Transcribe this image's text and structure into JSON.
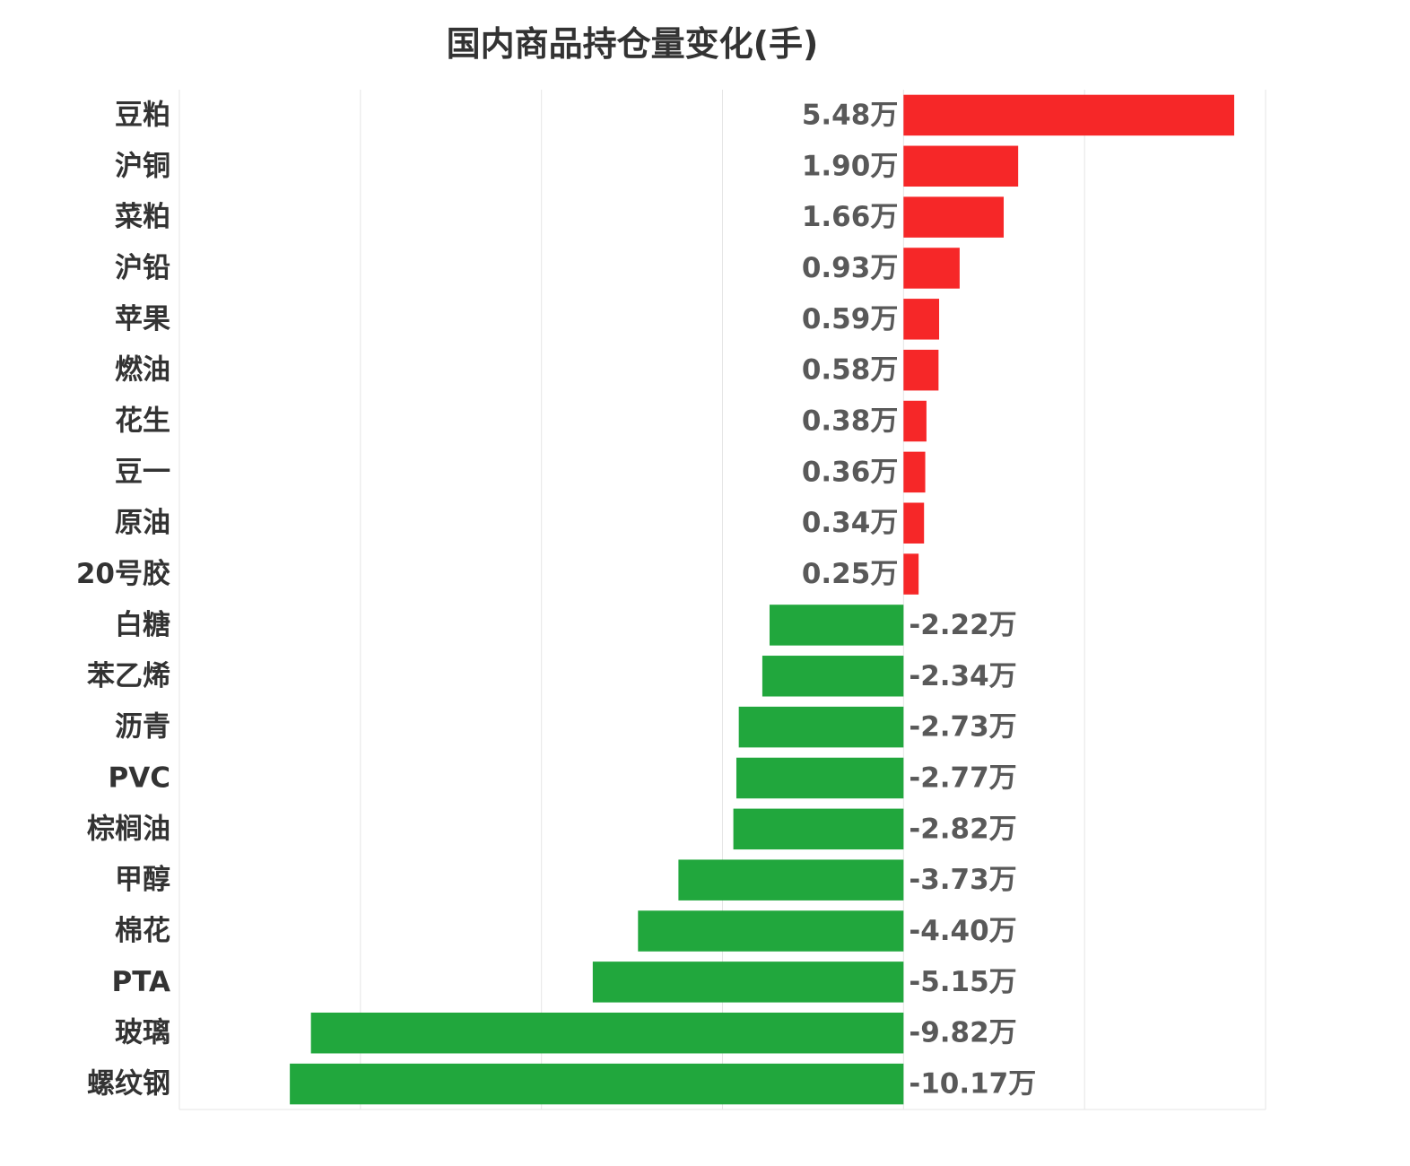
{
  "chart_data": {
    "type": "bar",
    "orientation": "horizontal",
    "title": "国内商品持仓量变化(手)",
    "categories": [
      "豆粕",
      "沪铜",
      "菜粕",
      "沪铅",
      "苹果",
      "燃油",
      "花生",
      "豆一",
      "原油",
      "20号胶",
      "白糖",
      "苯乙烯",
      "沥青",
      "PVC",
      "棕榈油",
      "甲醇",
      "棉花",
      "PTA",
      "玻璃",
      "螺纹钢"
    ],
    "values": [
      5.48,
      1.9,
      1.66,
      0.93,
      0.59,
      0.58,
      0.38,
      0.36,
      0.34,
      0.25,
      -2.22,
      -2.34,
      -2.73,
      -2.77,
      -2.82,
      -3.73,
      -4.4,
      -5.15,
      -9.82,
      -10.17
    ],
    "labels": [
      "5.48万",
      "1.90万",
      "1.66万",
      "0.93万",
      "0.59万",
      "0.58万",
      "0.38万",
      "0.36万",
      "0.34万",
      "0.25万",
      "-2.22万",
      "-2.34万",
      "-2.73万",
      "-2.77万",
      "-2.82万",
      "-3.73万",
      "-4.40万",
      "-5.15万",
      "-9.82万",
      "-10.17万"
    ],
    "unit": "万",
    "xlim": [
      -12,
      6
    ],
    "grid": true,
    "legend": "none",
    "colors": {
      "positive": "#f62728",
      "negative": "#21a73d",
      "grid": "#e6e6e6"
    }
  }
}
